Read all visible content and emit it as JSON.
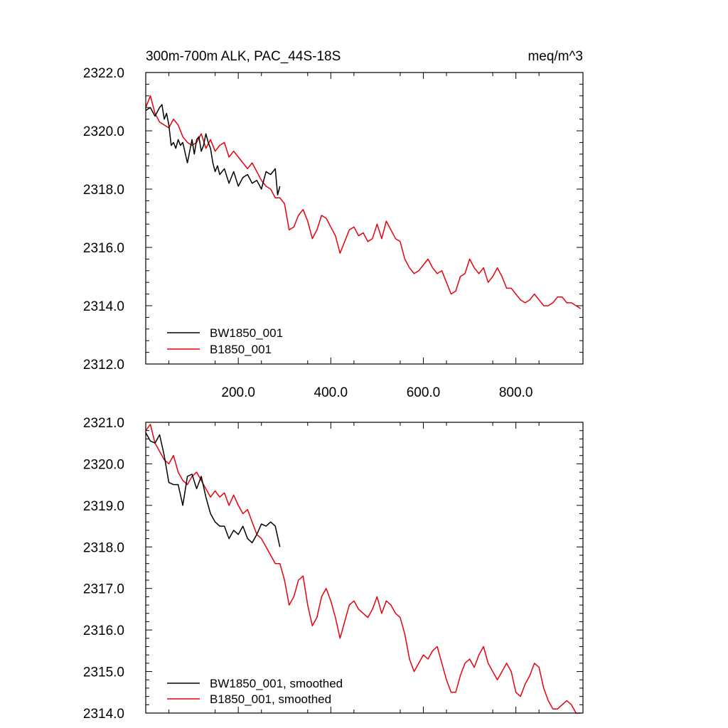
{
  "chart_data": [
    {
      "type": "line",
      "title": "300m-700m ALK, PAC_44S-18S",
      "units": "meq/m^3",
      "xlim": [
        0,
        945
      ],
      "ylim": [
        2312.0,
        2322.0
      ],
      "xticks": [
        200,
        400,
        600,
        800
      ],
      "xtick_labels": [
        "200.0",
        "400.0",
        "600.0",
        "800.0"
      ],
      "yticks": [
        2312,
        2314,
        2316,
        2318,
        2320,
        2322
      ],
      "ytick_labels": [
        "2312.0",
        "2314.0",
        "2316.0",
        "2318.0",
        "2320.0",
        "2322.0"
      ],
      "grid": false,
      "legend_position": "bottom-left",
      "series": [
        {
          "name": "BW1850_001",
          "color": "#000000",
          "x": [
            0,
            10,
            20,
            30,
            35,
            40,
            45,
            50,
            55,
            60,
            65,
            70,
            75,
            80,
            90,
            100,
            105,
            110,
            115,
            120,
            125,
            130,
            135,
            140,
            145,
            150,
            155,
            160,
            170,
            180,
            190,
            200,
            210,
            220,
            230,
            240,
            250,
            260,
            270,
            280,
            285,
            290
          ],
          "y": [
            2320.7,
            2320.8,
            2320.5,
            2320.8,
            2320.9,
            2320.4,
            2320.6,
            2320.2,
            2319.5,
            2319.6,
            2319.4,
            2319.7,
            2319.5,
            2319.6,
            2318.9,
            2319.7,
            2319.2,
            2319.7,
            2319.8,
            2319.3,
            2319.5,
            2319.9,
            2319.6,
            2319.4,
            2318.9,
            2318.6,
            2318.8,
            2318.5,
            2318.7,
            2318.2,
            2318.6,
            2318.1,
            2318.4,
            2318.5,
            2318.2,
            2318.3,
            2318.0,
            2318.6,
            2318.5,
            2318.7,
            2317.8,
            2318.1
          ]
        },
        {
          "name": "B1850_001",
          "color": "#e8000b",
          "x": [
            0,
            10,
            20,
            30,
            40,
            50,
            60,
            70,
            80,
            90,
            100,
            110,
            120,
            130,
            140,
            150,
            160,
            170,
            180,
            190,
            200,
            210,
            220,
            230,
            240,
            250,
            260,
            270,
            280,
            290,
            300,
            310,
            320,
            330,
            340,
            350,
            360,
            370,
            380,
            390,
            400,
            410,
            420,
            430,
            440,
            450,
            460,
            470,
            480,
            490,
            500,
            510,
            520,
            530,
            540,
            550,
            560,
            570,
            580,
            590,
            600,
            610,
            620,
            630,
            640,
            650,
            660,
            670,
            680,
            690,
            700,
            710,
            720,
            730,
            740,
            750,
            760,
            770,
            780,
            790,
            800,
            810,
            820,
            830,
            840,
            850,
            860,
            870,
            880,
            890,
            900,
            910,
            920,
            930,
            940
          ],
          "y": [
            2320.8,
            2321.2,
            2320.6,
            2320.3,
            2320.2,
            2320.1,
            2320.4,
            2320.2,
            2319.8,
            2319.6,
            2319.5,
            2319.6,
            2319.9,
            2319.4,
            2319.7,
            2319.3,
            2319.5,
            2319.6,
            2319.1,
            2319.3,
            2319.1,
            2318.9,
            2318.7,
            2318.9,
            2318.6,
            2318.3,
            2318.1,
            2318.0,
            2317.7,
            2317.7,
            2317.5,
            2316.6,
            2316.7,
            2317.1,
            2317.3,
            2316.9,
            2316.3,
            2316.6,
            2317.1,
            2317.0,
            2316.7,
            2316.4,
            2315.8,
            2316.2,
            2316.6,
            2316.7,
            2316.4,
            2316.5,
            2316.2,
            2316.3,
            2316.8,
            2316.3,
            2316.9,
            2316.6,
            2316.3,
            2316.2,
            2315.6,
            2315.3,
            2315.1,
            2315.2,
            2315.4,
            2315.6,
            2315.3,
            2315.1,
            2315.2,
            2314.8,
            2314.4,
            2314.5,
            2315.0,
            2315.1,
            2315.6,
            2315.3,
            2315.1,
            2315.3,
            2314.8,
            2315.0,
            2315.3,
            2315.0,
            2314.6,
            2314.6,
            2314.4,
            2314.2,
            2314.1,
            2314.2,
            2314.4,
            2314.2,
            2314.0,
            2314.0,
            2314.1,
            2314.3,
            2314.3,
            2314.1,
            2314.1,
            2314.0,
            2313.9
          ]
        }
      ]
    },
    {
      "type": "line",
      "xlim": [
        0,
        945
      ],
      "ylim": [
        2314.0,
        2321.0
      ],
      "xticks": [
        200,
        400,
        600,
        800
      ],
      "yticks": [
        2314,
        2315,
        2316,
        2317,
        2318,
        2319,
        2320,
        2321
      ],
      "ytick_labels": [
        "2314.0",
        "2315.0",
        "2316.0",
        "2317.0",
        "2318.0",
        "2319.0",
        "2320.0",
        "2321.0"
      ],
      "grid": false,
      "legend_position": "bottom-left",
      "series": [
        {
          "name": "BW1850_001, smoothed",
          "color": "#000000",
          "x": [
            0,
            10,
            20,
            30,
            40,
            50,
            60,
            70,
            80,
            90,
            100,
            110,
            120,
            130,
            140,
            150,
            160,
            170,
            180,
            190,
            200,
            210,
            220,
            230,
            240,
            250,
            260,
            270,
            280,
            290
          ],
          "y": [
            2320.75,
            2320.55,
            2320.5,
            2320.7,
            2320.2,
            2319.55,
            2319.5,
            2319.5,
            2319.0,
            2319.7,
            2319.75,
            2319.4,
            2319.7,
            2319.2,
            2318.8,
            2318.6,
            2318.5,
            2318.5,
            2318.2,
            2318.4,
            2318.3,
            2318.5,
            2318.2,
            2318.1,
            2318.3,
            2318.55,
            2318.5,
            2318.6,
            2318.5,
            2318.0
          ]
        },
        {
          "name": "B1850_001, smoothed",
          "color": "#e8000b",
          "x": [
            0,
            10,
            20,
            30,
            40,
            50,
            60,
            70,
            80,
            90,
            100,
            110,
            120,
            130,
            140,
            150,
            160,
            170,
            180,
            190,
            200,
            210,
            220,
            230,
            240,
            250,
            260,
            270,
            280,
            290,
            300,
            310,
            320,
            330,
            340,
            350,
            360,
            370,
            380,
            390,
            400,
            410,
            420,
            430,
            440,
            450,
            460,
            470,
            480,
            490,
            500,
            510,
            520,
            530,
            540,
            550,
            560,
            570,
            580,
            590,
            600,
            610,
            620,
            630,
            640,
            650,
            660,
            670,
            680,
            690,
            700,
            710,
            720,
            730,
            740,
            750,
            760,
            770,
            780,
            790,
            800,
            810,
            820,
            830,
            840,
            850,
            860,
            870,
            880,
            890,
            900,
            910,
            920,
            930,
            940
          ],
          "y": [
            2320.8,
            2320.95,
            2320.5,
            2320.3,
            2320.1,
            2320.0,
            2320.2,
            2319.8,
            2319.6,
            2319.5,
            2319.7,
            2319.8,
            2319.6,
            2319.4,
            2319.2,
            2319.35,
            2319.2,
            2319.3,
            2319.0,
            2319.25,
            2319.0,
            2318.8,
            2318.9,
            2318.6,
            2318.3,
            2318.2,
            2318.0,
            2317.8,
            2317.6,
            2317.6,
            2317.2,
            2316.6,
            2316.8,
            2317.2,
            2317.3,
            2316.6,
            2316.1,
            2316.3,
            2316.8,
            2317.0,
            2316.7,
            2316.3,
            2315.8,
            2316.2,
            2316.6,
            2316.7,
            2316.5,
            2316.4,
            2316.3,
            2316.5,
            2316.8,
            2316.4,
            2316.7,
            2316.6,
            2316.4,
            2316.3,
            2315.9,
            2315.3,
            2315.0,
            2315.2,
            2315.4,
            2315.3,
            2315.5,
            2315.6,
            2315.2,
            2314.8,
            2314.5,
            2314.5,
            2314.9,
            2315.2,
            2315.3,
            2315.1,
            2315.4,
            2315.6,
            2315.2,
            2315.0,
            2314.8,
            2315.0,
            2315.2,
            2315.0,
            2314.5,
            2314.4,
            2314.7,
            2314.9,
            2315.2,
            2315.1,
            2314.6,
            2314.3,
            2314.1,
            2314.1,
            2314.2,
            2314.3,
            2314.2,
            2314.0,
            2314.0
          ]
        }
      ]
    }
  ]
}
